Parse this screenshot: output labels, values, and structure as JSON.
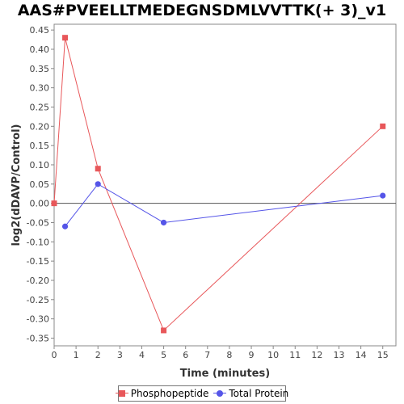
{
  "chart_data": {
    "type": "line",
    "title": "AAS#PVEELLTMEDEGNSDMLVVTTK(+ 3)_v1",
    "xlabel": "Time (minutes)",
    "ylabel": "log2(dDAVP/Control)",
    "xlim": [
      0,
      15.6
    ],
    "ylim": [
      -0.37,
      0.465
    ],
    "xticks": [
      0,
      1,
      2,
      3,
      4,
      5,
      6,
      7,
      8,
      9,
      10,
      11,
      12,
      13,
      14,
      15
    ],
    "yticks": [
      0.45,
      0.4,
      0.35,
      0.3,
      0.25,
      0.2,
      0.15,
      0.1,
      0.05,
      0.0,
      -0.05,
      -0.1,
      -0.15,
      -0.2,
      -0.25,
      -0.3,
      -0.35
    ],
    "ytick_labels": [
      "0.45",
      "0.40",
      "0.35",
      "0.30",
      "0.25",
      "0.20",
      "0.15",
      "0.10",
      "0.05",
      "0.00",
      "-0.05",
      "-0.10",
      "-0.15",
      "-0.20",
      "-0.25",
      "-0.30",
      "-0.35"
    ],
    "zero_line": true,
    "grid": false,
    "legend_position": "bottom",
    "series": [
      {
        "name": "Phosphopeptide",
        "color": "#e8575a",
        "marker": "square",
        "x": [
          0,
          0.5,
          2,
          5,
          15
        ],
        "y": [
          0.0,
          0.43,
          0.09,
          -0.33,
          0.2
        ]
      },
      {
        "name": "Total Protein",
        "color": "#5555e8",
        "marker": "circle",
        "x": [
          0.5,
          2,
          5,
          15
        ],
        "y": [
          -0.06,
          0.05,
          -0.05,
          0.02
        ]
      }
    ]
  }
}
